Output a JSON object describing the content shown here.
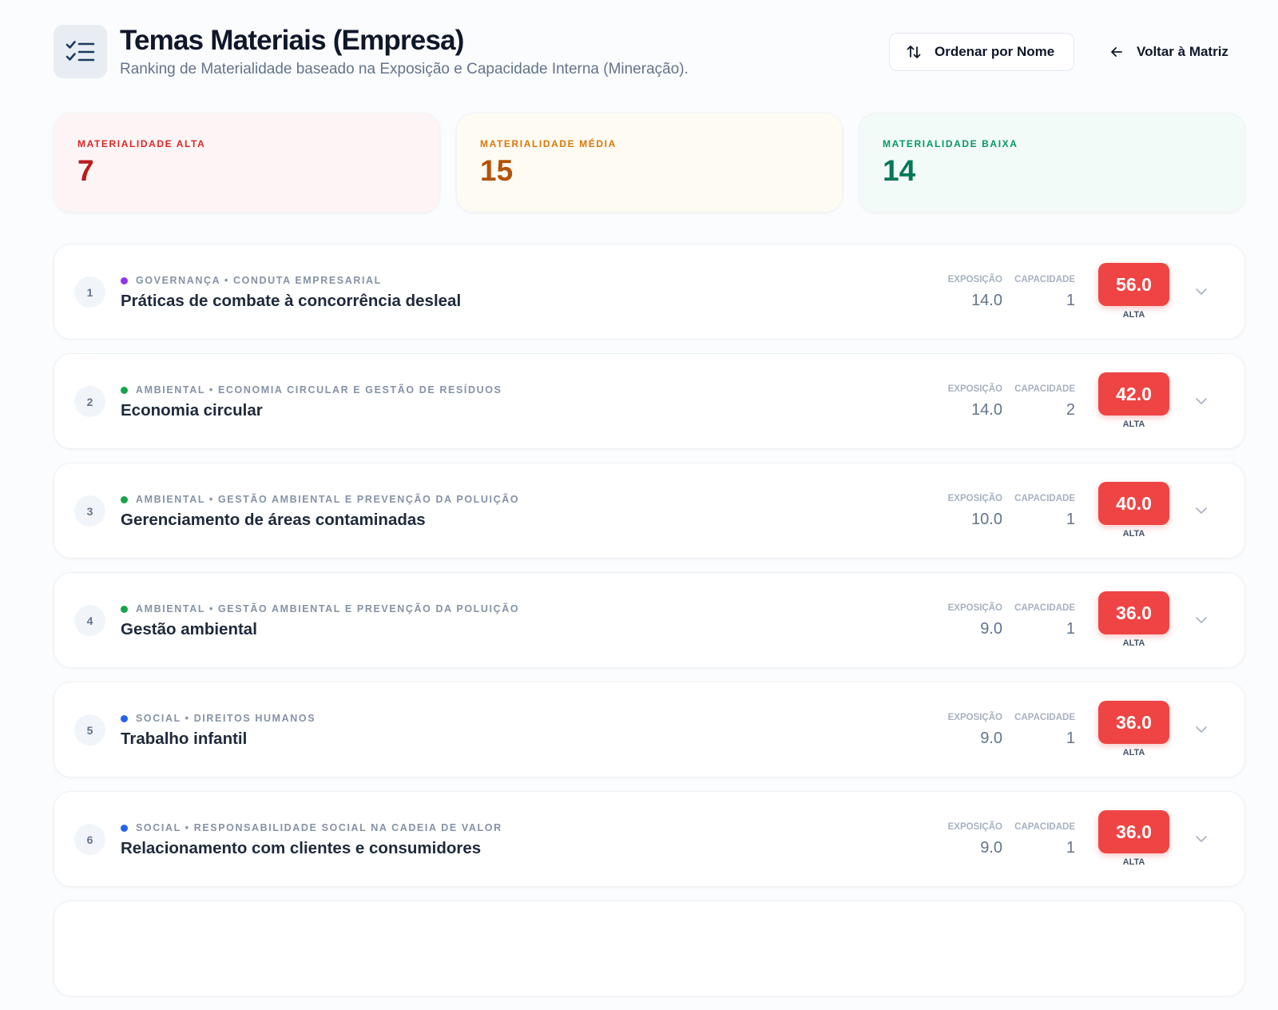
{
  "header": {
    "title": "Temas Materiais (Empresa)",
    "subtitle": "Ranking de Materialidade baseado na Exposição e Capacidade Interna (Mineração).",
    "sort_button": "Ordenar por Nome",
    "back_button": "Voltar à Matriz"
  },
  "summary": [
    {
      "label": "MATERIALIDADE ALTA",
      "value": 7,
      "color": "#b91c1c",
      "label_color": "#dc2626",
      "background": "#fdf5f5"
    },
    {
      "label": "MATERIALIDADE MÉDIA",
      "value": 15,
      "color": "#b45309",
      "label_color": "#d97706",
      "background": "#fefbf3"
    },
    {
      "label": "MATERIALIDADE BAIXA",
      "value": 14,
      "color": "#047857",
      "label_color": "#059669",
      "background": "#f2fbf7"
    }
  ],
  "list": {
    "exposure_label": "EXPOSIÇÃO",
    "capacity_label": "CAPACIDADE",
    "items": [
      {
        "rank": 1,
        "category": "GOVERNANÇA • CONDUTA EMPRESARIAL",
        "color": "#9333ea",
        "title": "Práticas de combate à concorrência desleal",
        "exposure": "14.0",
        "capacity": 1,
        "score": "56.0",
        "level": "ALTA"
      },
      {
        "rank": 2,
        "category": "AMBIENTAL • ECONOMIA CIRCULAR E GESTÃO DE RESÍDUOS",
        "color": "#16a34a",
        "title": "Economia circular",
        "exposure": "14.0",
        "capacity": 2,
        "score": "42.0",
        "level": "ALTA"
      },
      {
        "rank": 3,
        "category": "AMBIENTAL • GESTÃO AMBIENTAL E PREVENÇÃO DA POLUIÇÃO",
        "color": "#16a34a",
        "title": "Gerenciamento de áreas contaminadas",
        "exposure": "10.0",
        "capacity": 1,
        "score": "40.0",
        "level": "ALTA"
      },
      {
        "rank": 4,
        "category": "AMBIENTAL • GESTÃO AMBIENTAL E PREVENÇÃO DA POLUIÇÃO",
        "color": "#16a34a",
        "title": "Gestão ambiental",
        "exposure": "9.0",
        "capacity": 1,
        "score": "36.0",
        "level": "ALTA"
      },
      {
        "rank": 5,
        "category": "SOCIAL • DIREITOS HUMANOS",
        "color": "#2563eb",
        "title": "Trabalho infantil",
        "exposure": "9.0",
        "capacity": 1,
        "score": "36.0",
        "level": "ALTA"
      },
      {
        "rank": 6,
        "category": "SOCIAL • RESPONSABILIDADE SOCIAL NA CADEIA DE VALOR",
        "color": "#2563eb",
        "title": "Relacionamento com clientes e consumidores",
        "exposure": "9.0",
        "capacity": 1,
        "score": "36.0",
        "level": "ALTA"
      }
    ]
  }
}
